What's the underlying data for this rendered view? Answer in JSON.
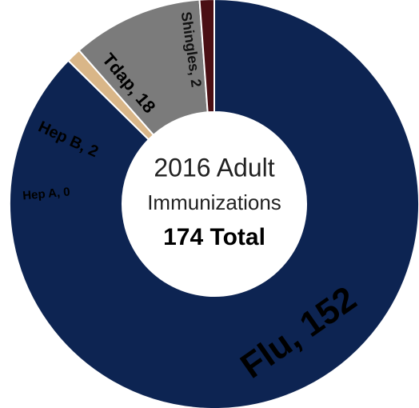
{
  "chart_data": {
    "type": "donut",
    "title_lines": [
      "2016 Adult",
      "Immunizations"
    ],
    "total_label": "174 Total",
    "categories": [
      "Flu",
      "Hep A",
      "Hep B",
      "Tdap",
      "Shingles"
    ],
    "values": [
      152,
      0,
      2,
      18,
      2
    ],
    "value_labels": [
      "Flu, 152",
      "Hep A, 0",
      "Hep B, 2",
      "Tdap, 18",
      "Shingles, 2"
    ],
    "colors": [
      "#0d2452",
      "#3a62a0",
      "#d9b688",
      "#7b7b7b",
      "#4a0f14"
    ]
  }
}
